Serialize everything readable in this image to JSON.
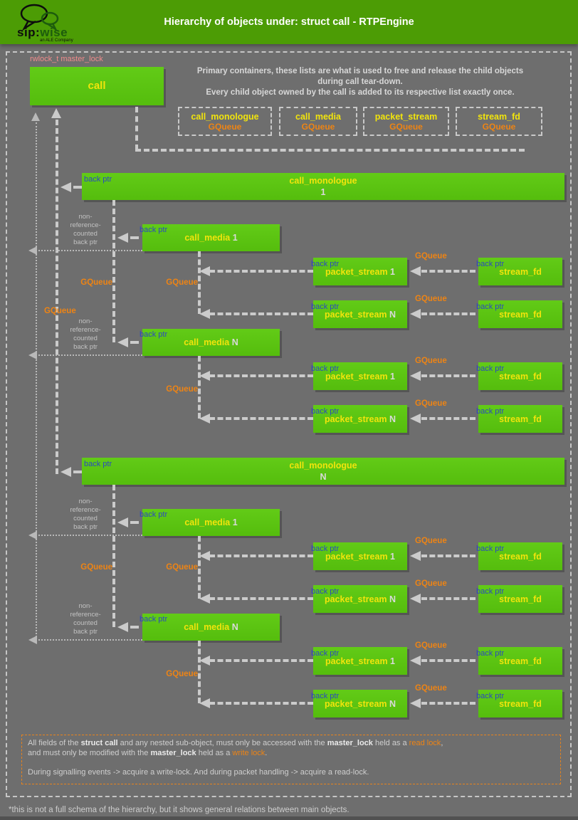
{
  "header": {
    "title": "Hierarchy of objects under: struct call - RTPEngine",
    "logo_text": "sip:",
    "logo_text2": "wise",
    "logo_sub": "an ALE Company"
  },
  "lock_label": "rwlock_t master_lock",
  "call_label": "call",
  "intro": {
    "line1": "Primary containers, these lists are what is used to free and release the child objects",
    "line2": "during call tear-down.",
    "line3": "Every child object owned by the call is added to its respective list exactly once."
  },
  "containers": [
    {
      "name": "call_monologue",
      "type": "GQueue"
    },
    {
      "name": "call_media",
      "type": "GQueue"
    },
    {
      "name": "packet_stream",
      "type": "GQueue"
    },
    {
      "name": "stream_fd",
      "type": "GQueue"
    }
  ],
  "labels": {
    "back_ptr": "back ptr",
    "gqueue": "GQueue",
    "non_ref": [
      "non-",
      "reference-",
      "counted",
      "back ptr"
    ]
  },
  "monologues": [
    {
      "name": "call_monologue",
      "index": "1",
      "media": [
        {
          "name": "call_media",
          "index": "1",
          "streams": [
            {
              "name": "packet_stream",
              "index": "1",
              "fd": "stream_fd"
            },
            {
              "name": "packet_stream",
              "index": "N",
              "fd": "stream_fd"
            }
          ]
        },
        {
          "name": "call_media",
          "index": "N",
          "streams": [
            {
              "name": "packet_stream",
              "index": "1",
              "fd": "stream_fd"
            },
            {
              "name": "packet_stream",
              "index": "N",
              "fd": "stream_fd"
            }
          ]
        }
      ]
    },
    {
      "name": "call_monologue",
      "index": "N",
      "media": [
        {
          "name": "call_media",
          "index": "1",
          "streams": [
            {
              "name": "packet_stream",
              "index": "1",
              "fd": "stream_fd"
            },
            {
              "name": "packet_stream",
              "index": "N",
              "fd": "stream_fd"
            }
          ]
        },
        {
          "name": "call_media",
          "index": "N",
          "streams": [
            {
              "name": "packet_stream",
              "index": "1",
              "fd": "stream_fd"
            },
            {
              "name": "packet_stream",
              "index": "N",
              "fd": "stream_fd"
            }
          ]
        }
      ]
    }
  ],
  "legend": {
    "p1": "All fields of the ",
    "b1": "struct call",
    "p2": " and any nested sub-object, must only be accessed with the ",
    "b2": "master_lock",
    "p3": " held as a ",
    "o1": "read lock",
    "p4": ",",
    "p5": "and must only be modified with the ",
    "b3": "master_lock",
    "p6": " held as a ",
    "o2": "write lock",
    "p7": ".",
    "line3": "During signalling events -> acquire a write-lock. And during packet handling -> acquire a read-lock."
  },
  "footnote": "*this is not a full schema of the hierarchy, but it shows general relations between main objects.",
  "colors": {
    "header_green": "#4c9c05",
    "box_green": "#5cc411",
    "yellow": "#f1e40c",
    "orange": "#ee8414",
    "blue": "#2b49c0",
    "pink": "#ef8b8b",
    "background": "#6e6e6e",
    "dash": "#cbcbcb"
  }
}
